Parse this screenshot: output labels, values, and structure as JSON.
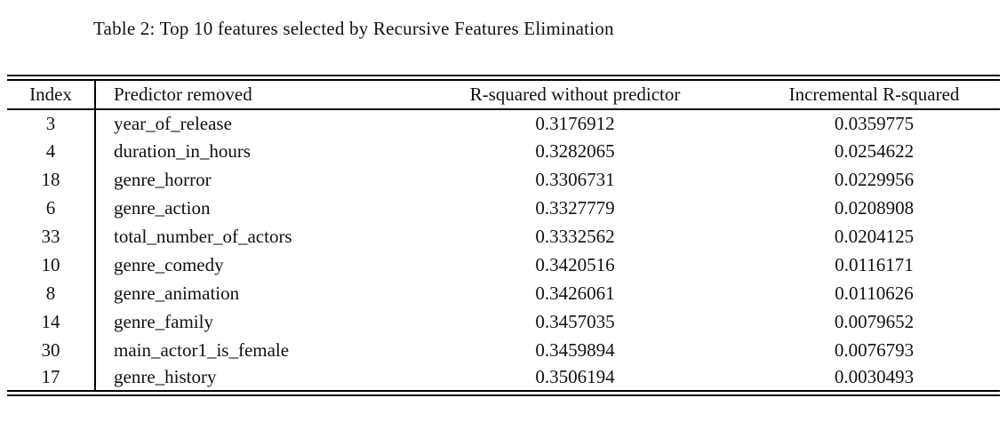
{
  "caption": "Table 2: Top 10 features selected by Recursive Features Elimination",
  "colors": {
    "background": "#ffffff",
    "text": "#111111",
    "rule": "#000000"
  },
  "table": {
    "columns": [
      "Index",
      "Predictor removed",
      "R-squared without predictor",
      "Incremental R-squared"
    ],
    "rows": [
      {
        "index": "3",
        "predictor": "year_of_release",
        "r_squared_without": "0.3176912",
        "incremental_r_squared": "0.0359775"
      },
      {
        "index": "4",
        "predictor": "duration_in_hours",
        "r_squared_without": "0.3282065",
        "incremental_r_squared": "0.0254622"
      },
      {
        "index": "18",
        "predictor": "genre_horror",
        "r_squared_without": "0.3306731",
        "incremental_r_squared": "0.0229956"
      },
      {
        "index": "6",
        "predictor": "genre_action",
        "r_squared_without": "0.3327779",
        "incremental_r_squared": "0.0208908"
      },
      {
        "index": "33",
        "predictor": "total_number_of_actors",
        "r_squared_without": "0.3332562",
        "incremental_r_squared": "0.0204125"
      },
      {
        "index": "10",
        "predictor": "genre_comedy",
        "r_squared_without": "0.3420516",
        "incremental_r_squared": "0.0116171"
      },
      {
        "index": "8",
        "predictor": "genre_animation",
        "r_squared_without": "0.3426061",
        "incremental_r_squared": "0.0110626"
      },
      {
        "index": "14",
        "predictor": "genre_family",
        "r_squared_without": "0.3457035",
        "incremental_r_squared": "0.0079652"
      },
      {
        "index": "30",
        "predictor": "main_actor1_is_female",
        "r_squared_without": "0.3459894",
        "incremental_r_squared": "0.0076793"
      },
      {
        "index": "17",
        "predictor": "genre_history",
        "r_squared_without": "0.3506194",
        "incremental_r_squared": "0.0030493"
      }
    ]
  }
}
